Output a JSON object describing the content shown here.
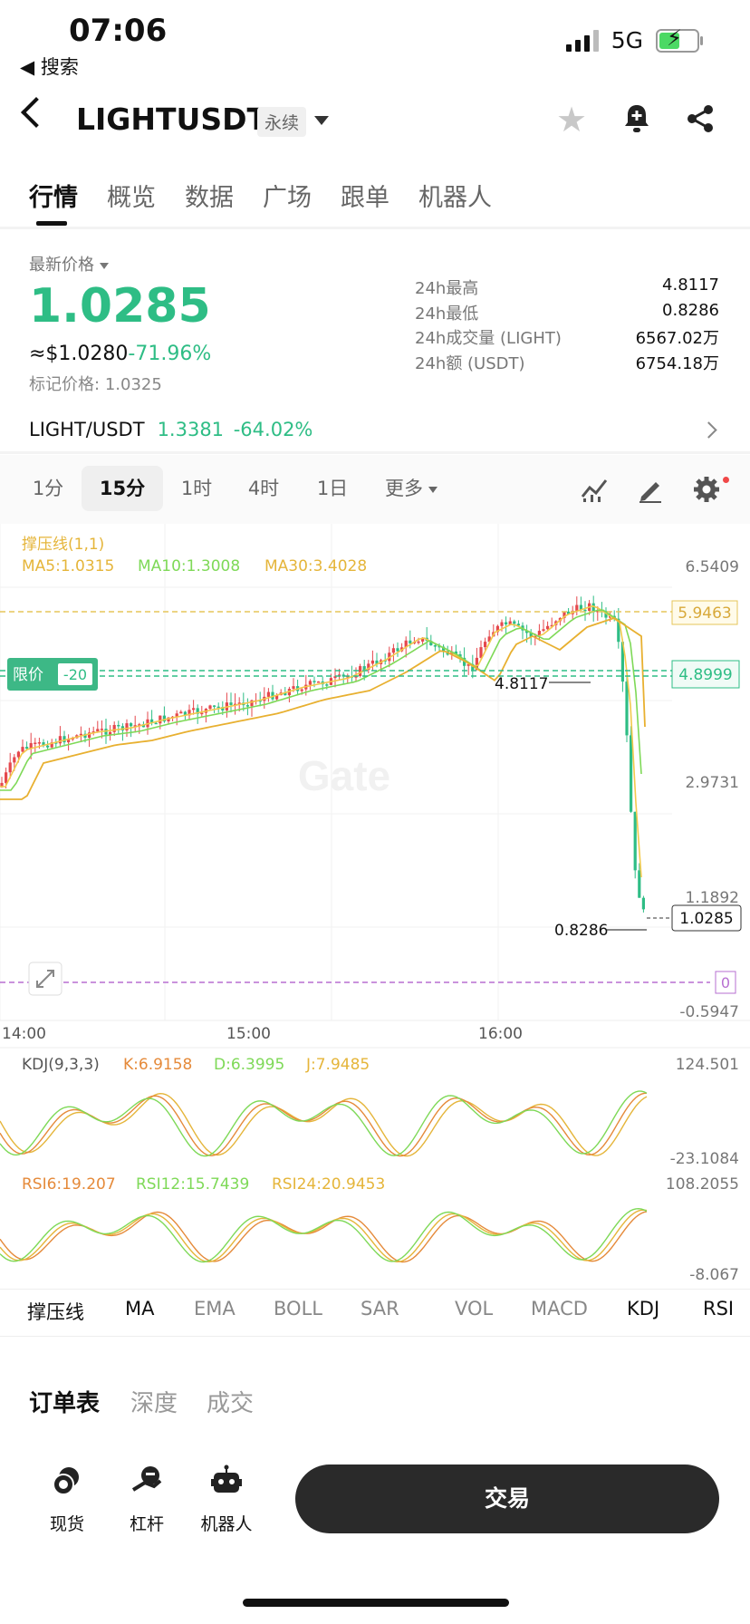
{
  "status_bar": {
    "time": "07:06",
    "back_app": "◀ 搜索",
    "network": "5G"
  },
  "header": {
    "title": "LIGHTUSDT",
    "badge": "永续"
  },
  "tabs": [
    {
      "label": "行情"
    },
    {
      "label": "概览"
    },
    {
      "label": "数据"
    },
    {
      "label": "广场"
    },
    {
      "label": "跟单"
    },
    {
      "label": "机器人"
    }
  ],
  "price": {
    "label": "最新价格",
    "last": "1.0285",
    "usd": "≈$1.0280",
    "change": "-71.96%",
    "mark_label": "标记价格:",
    "mark": "1.0325"
  },
  "stats": [
    {
      "label": "24h最高",
      "value": "4.8117"
    },
    {
      "label": "24h最低",
      "value": "0.8286"
    },
    {
      "label": "24h成交量 (LIGHT)",
      "value": "6567.02万"
    },
    {
      "label": "24h额 (USDT)",
      "value": "6754.18万"
    }
  ],
  "spot": {
    "pair": "LIGHT/USDT",
    "price": "1.3381",
    "change": "-64.02%"
  },
  "timeframes": [
    {
      "label": "1分"
    },
    {
      "label": "15分"
    },
    {
      "label": "1时"
    },
    {
      "label": "4时"
    },
    {
      "label": "1日"
    },
    {
      "label": "更多"
    }
  ],
  "chart": {
    "overlay_title": "撑压线(1,1)",
    "ma5": "MA5:1.0315",
    "ma10": "MA10:1.3008",
    "ma30": "MA30:3.4028",
    "axis": {
      "top": "6.5409",
      "mid": "2.9731",
      "low": "1.1892",
      "bottom": "-0.5947"
    },
    "lines": {
      "resistance": "5.9463",
      "limit": "4.8999",
      "zero": "0"
    },
    "current_price": "1.0285",
    "high_mark": "4.8117",
    "low_mark": "0.8286",
    "limit_label": "限价",
    "limit_qty": "-20",
    "times": [
      "14:00",
      "15:00",
      "16:00"
    ],
    "watermark": "Gate",
    "colors": {
      "up": "#e5484d",
      "down": "#2ebd85",
      "ma5": "#f2c94c",
      "ma10": "#7ed957",
      "ma30": "#e5b53a"
    }
  },
  "kdj": {
    "title": "KDJ(9,3,3)",
    "k": "K:6.9158",
    "d": "D:6.3995",
    "j": "J:7.9485",
    "top": "124.501",
    "bottom": "-23.1084"
  },
  "rsi": {
    "r6": "RSI6:19.207",
    "r12": "RSI12:15.7439",
    "r24": "RSI24:20.9453",
    "top": "108.2055",
    "bottom": "-8.067"
  },
  "indicator_tabs": [
    {
      "label": "撑压线"
    },
    {
      "label": "MA"
    },
    {
      "label": "EMA"
    },
    {
      "label": "BOLL"
    },
    {
      "label": "SAR"
    },
    {
      "label": "VOL"
    },
    {
      "label": "MACD"
    },
    {
      "label": "KDJ"
    },
    {
      "label": "RSI"
    }
  ],
  "orderbook_tabs": [
    {
      "label": "订单表"
    },
    {
      "label": "深度"
    },
    {
      "label": "成交"
    }
  ],
  "bottom": {
    "spot": "现货",
    "margin": "杠杆",
    "bot": "机器人",
    "trade": "交易"
  }
}
